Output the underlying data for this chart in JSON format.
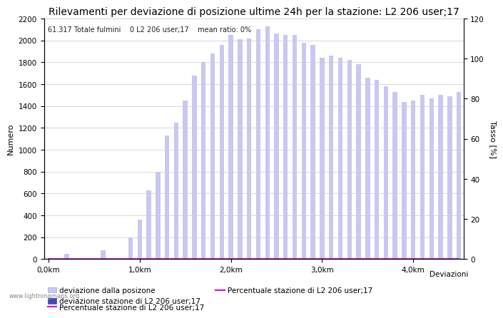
{
  "title": "Rilevamenti per deviazione di posizione ultime 24h per la stazione: L2 206 user;17",
  "xlabel": "Deviazioni",
  "ylabel_left": "Numero",
  "ylabel_right": "Tasso [%]",
  "annotation": "61.317 Totale fulmini    0 L2 206 user;17    mean ratio: 0%",
  "watermark": "www.lightningmaps.org",
  "ylim_left": [
    0,
    2200
  ],
  "ylim_right": [
    0,
    120
  ],
  "xtick_positions": [
    0,
    10,
    20,
    30,
    40
  ],
  "xtick_labels": [
    "0,0km",
    "1,0km",
    "2,0km",
    "3,0km",
    "4,0km"
  ],
  "ytick_left": [
    0,
    200,
    400,
    600,
    800,
    1000,
    1200,
    1400,
    1600,
    1800,
    2000,
    2200
  ],
  "ytick_right": [
    0,
    20,
    40,
    60,
    80,
    100,
    120
  ],
  "bar_color_light": "#c8c8f0",
  "bar_color_dark": "#4848b8",
  "line_color": "#dd00dd",
  "background_color": "#ffffff",
  "grid_color": "#c8c8c8",
  "bar_width": 0.5,
  "values_light": [
    0,
    0,
    50,
    0,
    0,
    0,
    80,
    0,
    0,
    200,
    360,
    630,
    800,
    1130,
    1250,
    1450,
    1680,
    1800,
    1880,
    1960,
    2050,
    2010,
    2020,
    2100,
    2130,
    2060,
    2050,
    2050,
    1980,
    1960,
    1840,
    1860,
    1840,
    1820,
    1780,
    1660,
    1640,
    1580,
    1530,
    1440,
    1450,
    1500,
    1470,
    1500,
    1490,
    1530
  ],
  "values_dark": [
    0,
    0,
    0,
    0,
    0,
    0,
    0,
    0,
    0,
    0,
    0,
    0,
    0,
    0,
    0,
    0,
    0,
    0,
    0,
    0,
    0,
    0,
    0,
    0,
    0,
    0,
    0,
    0,
    0,
    0,
    0,
    0,
    0,
    0,
    0,
    0,
    0,
    0,
    0,
    0,
    0,
    0,
    0,
    0,
    0,
    0
  ],
  "values_line": [
    0,
    0,
    0,
    0,
    0,
    0,
    0,
    0,
    0,
    0,
    0,
    0,
    0,
    0,
    0,
    0,
    0,
    0,
    0,
    0,
    0,
    0,
    0,
    0,
    0,
    0,
    0,
    0,
    0,
    0,
    0,
    0,
    0,
    0,
    0,
    0,
    0,
    0,
    0,
    0,
    0,
    0,
    0,
    0,
    0,
    0
  ],
  "legend_labels": [
    "deviazione dalla posizone",
    "deviazione stazione di L2 206 user;17",
    "Percentuale stazione di L2 206 user;17"
  ],
  "title_fontsize": 10,
  "axis_fontsize": 8,
  "tick_fontsize": 7.5,
  "legend_fontsize": 7.5,
  "n_bars": 46
}
